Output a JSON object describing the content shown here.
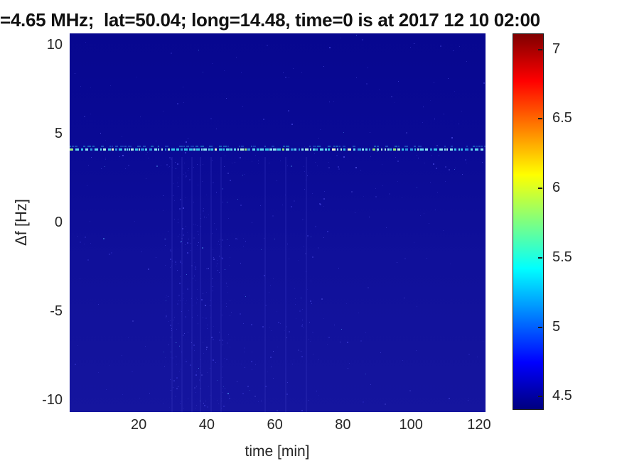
{
  "title": "=4.65 MHz;  lat=50.04; long=14.48, time=0 is at 2017 12 10 02:00",
  "axes": {
    "xlabel": "time [min]",
    "ylabel": "Δf [Hz]",
    "x_ticks": [
      20,
      40,
      60,
      80,
      100,
      120
    ],
    "y_ticks": [
      10,
      5,
      0,
      -5,
      -10
    ],
    "xlim": [
      -0.3,
      121.9
    ],
    "ylim": [
      -10.7,
      10.65
    ]
  },
  "colorbar": {
    "ticks": [
      7,
      6.5,
      6,
      5.5,
      5,
      4.5
    ],
    "range": [
      4.4,
      7.11
    ],
    "colormap": "jet"
  },
  "chart_data": {
    "type": "heatmap",
    "title": "=4.65 MHz;  lat=50.04; long=14.48, time=0 is at 2017 12 10 02:00",
    "xlabel": "time [min]",
    "ylabel": "Δf [Hz]",
    "xlim": [
      0,
      122
    ],
    "ylim": [
      -10.7,
      10.65
    ],
    "clim": [
      4.4,
      7.11
    ],
    "colormap": "jet",
    "colorbar_ticks": [
      7,
      6.5,
      6,
      5.5,
      5,
      4.5
    ],
    "background_value": 4.45,
    "features": [
      {
        "kind": "doppler-trace",
        "y_hz": 4.0,
        "x_range_min": [
          0,
          122
        ],
        "intensity_range": [
          5.2,
          6.8
        ],
        "appearance": "intermittent bright dashed horizontal trace, cyan to pale yellow-white"
      },
      {
        "kind": "faint-echo-trace",
        "y_hz": 4.3,
        "x_range_min": [
          0,
          122
        ],
        "intensity_range": [
          4.7,
          5.1
        ],
        "appearance": "very faint darker blue dashed trace just above main trace"
      },
      {
        "kind": "noise-speckle-band",
        "x_range_min": [
          27,
          47
        ],
        "y_range_hz": [
          -10.7,
          3.5
        ],
        "intensity_range": [
          4.5,
          5.0
        ],
        "appearance": "vertical band of faint brighter-blue speckles"
      },
      {
        "kind": "diffuse-noise",
        "x_range_min": [
          0,
          122
        ],
        "y_range_hz": [
          -10.7,
          10.65
        ],
        "intensity_range": [
          4.45,
          4.7
        ],
        "appearance": "sparse very faint speckles over dark blue background"
      }
    ],
    "noise": {
      "seed": 20171210,
      "bands": [
        {
          "x": [
            27,
            47
          ],
          "y": [
            -10.7,
            3.5
          ],
          "count": 280
        },
        {
          "x": [
            0,
            122
          ],
          "y": [
            -10.7,
            10.6
          ],
          "count": 240
        },
        {
          "x": [
            48,
            76
          ],
          "y": [
            -10.7,
            3.0
          ],
          "count": 90
        },
        {
          "x": [
            5,
            122
          ],
          "y": [
            3.0,
            3.85
          ],
          "count": 60
        }
      ],
      "streak_x_min": [
        29.5,
        32.5,
        35.5,
        38,
        41,
        44,
        57,
        63,
        69
      ],
      "speckle_colors": [
        "#1e1ead",
        "#2626b8",
        "#3030c4",
        "#3b3bd0",
        "#2a2ab4",
        "#4d4dde",
        "#3a6ad2"
      ]
    },
    "trace_render": {
      "dash_palette": [
        {
          "c": "#38c8e8",
          "w": 0.28
        },
        {
          "c": "#62d8ee",
          "w": 0.22
        },
        {
          "c": "#8ce8f2",
          "w": 0.14
        },
        {
          "c": "#b2f0e2",
          "w": 0.1
        },
        {
          "c": "#ecf8cf",
          "w": 0.08
        },
        {
          "c": "#9ae87c",
          "w": 0.06
        },
        {
          "c": "#2f9ade",
          "w": 0.12
        }
      ],
      "echo_palette": [
        "#1d4fc0",
        "#2668c8",
        "#1f86c8"
      ]
    }
  }
}
